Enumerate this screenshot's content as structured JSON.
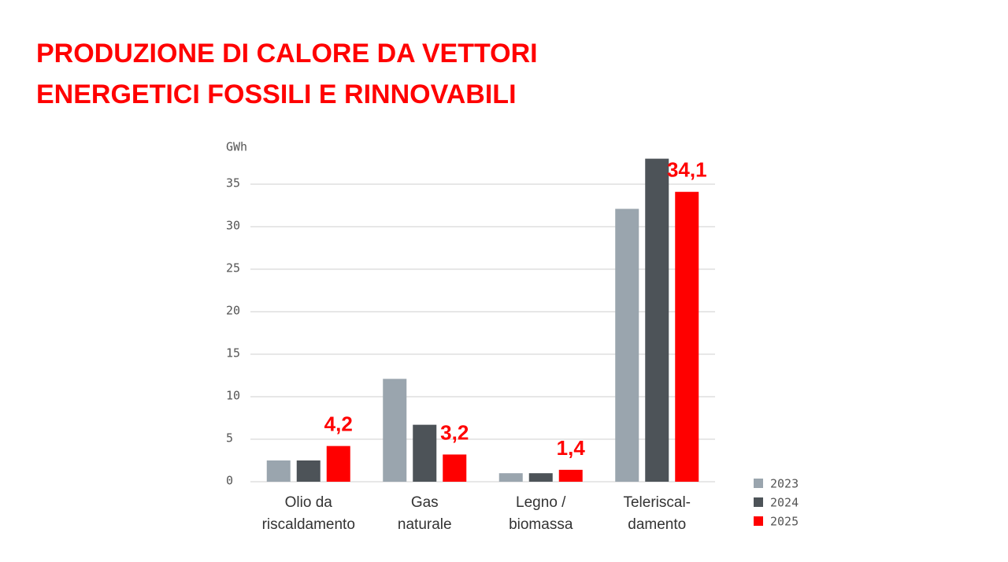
{
  "chart_data": {
    "type": "bar",
    "title": [
      "PRODUZIONE DI CALORE DA VETTORI",
      "ENERGETICI FOSSILI E RINNOVABILI"
    ],
    "y_axis_label": "GWh",
    "categories": [
      [
        "Olio da",
        "riscaldamento"
      ],
      [
        "Gas",
        "naturale"
      ],
      [
        "Legno /",
        "biomassa"
      ],
      [
        "Teleriscal-",
        "damento"
      ]
    ],
    "series": [
      {
        "name": "2023",
        "color": "#9aa5ae",
        "values": [
          2.5,
          12.1,
          1.0,
          32.1
        ]
      },
      {
        "name": "2024",
        "color": "#4d5358",
        "values": [
          2.5,
          6.7,
          1.0,
          38.0
        ]
      },
      {
        "name": "2025",
        "color": "#ff0000",
        "values": [
          4.2,
          3.2,
          1.4,
          34.1
        ],
        "value_labels": [
          "4,2",
          "3,2",
          "1,4",
          "34,1"
        ]
      }
    ],
    "ylim": [
      0,
      38.5
    ],
    "yticks": [
      0,
      5,
      10,
      15,
      20,
      25,
      30,
      35
    ],
    "grid": true
  }
}
